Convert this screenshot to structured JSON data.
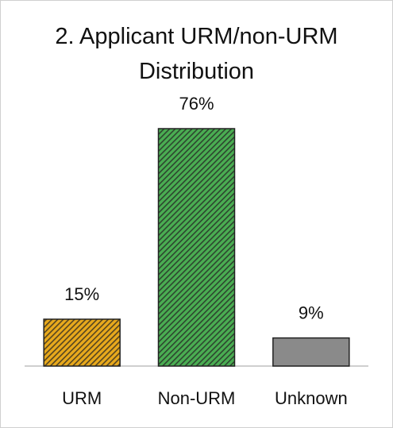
{
  "chart_data": {
    "type": "bar",
    "title": "2. Applicant URM/non-URM Distribution",
    "categories": [
      "URM",
      "Non-URM",
      "Unknown"
    ],
    "values": [
      15,
      76,
      9
    ],
    "value_labels": [
      "15%",
      "76%",
      "9%"
    ],
    "colors": [
      "#e8a91c",
      "#4aad52",
      "#8a8a8a"
    ],
    "hatch": [
      true,
      true,
      false
    ]
  }
}
